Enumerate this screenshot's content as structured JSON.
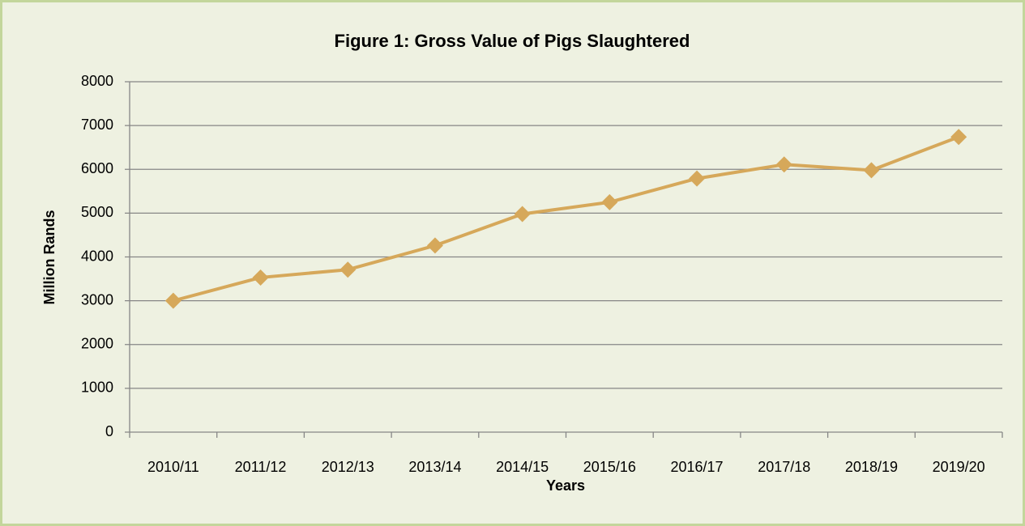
{
  "chart_data": {
    "type": "line",
    "title": "Figure 1: Gross Value of Pigs Slaughtered",
    "xlabel": "Years",
    "ylabel": "Million Rands",
    "categories": [
      "2010/11",
      "2011/12",
      "2012/13",
      "2013/14",
      "2014/15",
      "2015/16",
      "2016/17",
      "2017/18",
      "2018/19",
      "2019/20"
    ],
    "values": [
      3000,
      3530,
      3710,
      4260,
      4980,
      5250,
      5790,
      6110,
      5980,
      6740
    ],
    "color": "#d6a85a",
    "ylim": [
      0,
      8000
    ],
    "yticks": [
      0,
      1000,
      2000,
      3000,
      4000,
      5000,
      6000,
      7000,
      8000
    ],
    "grid": true
  }
}
